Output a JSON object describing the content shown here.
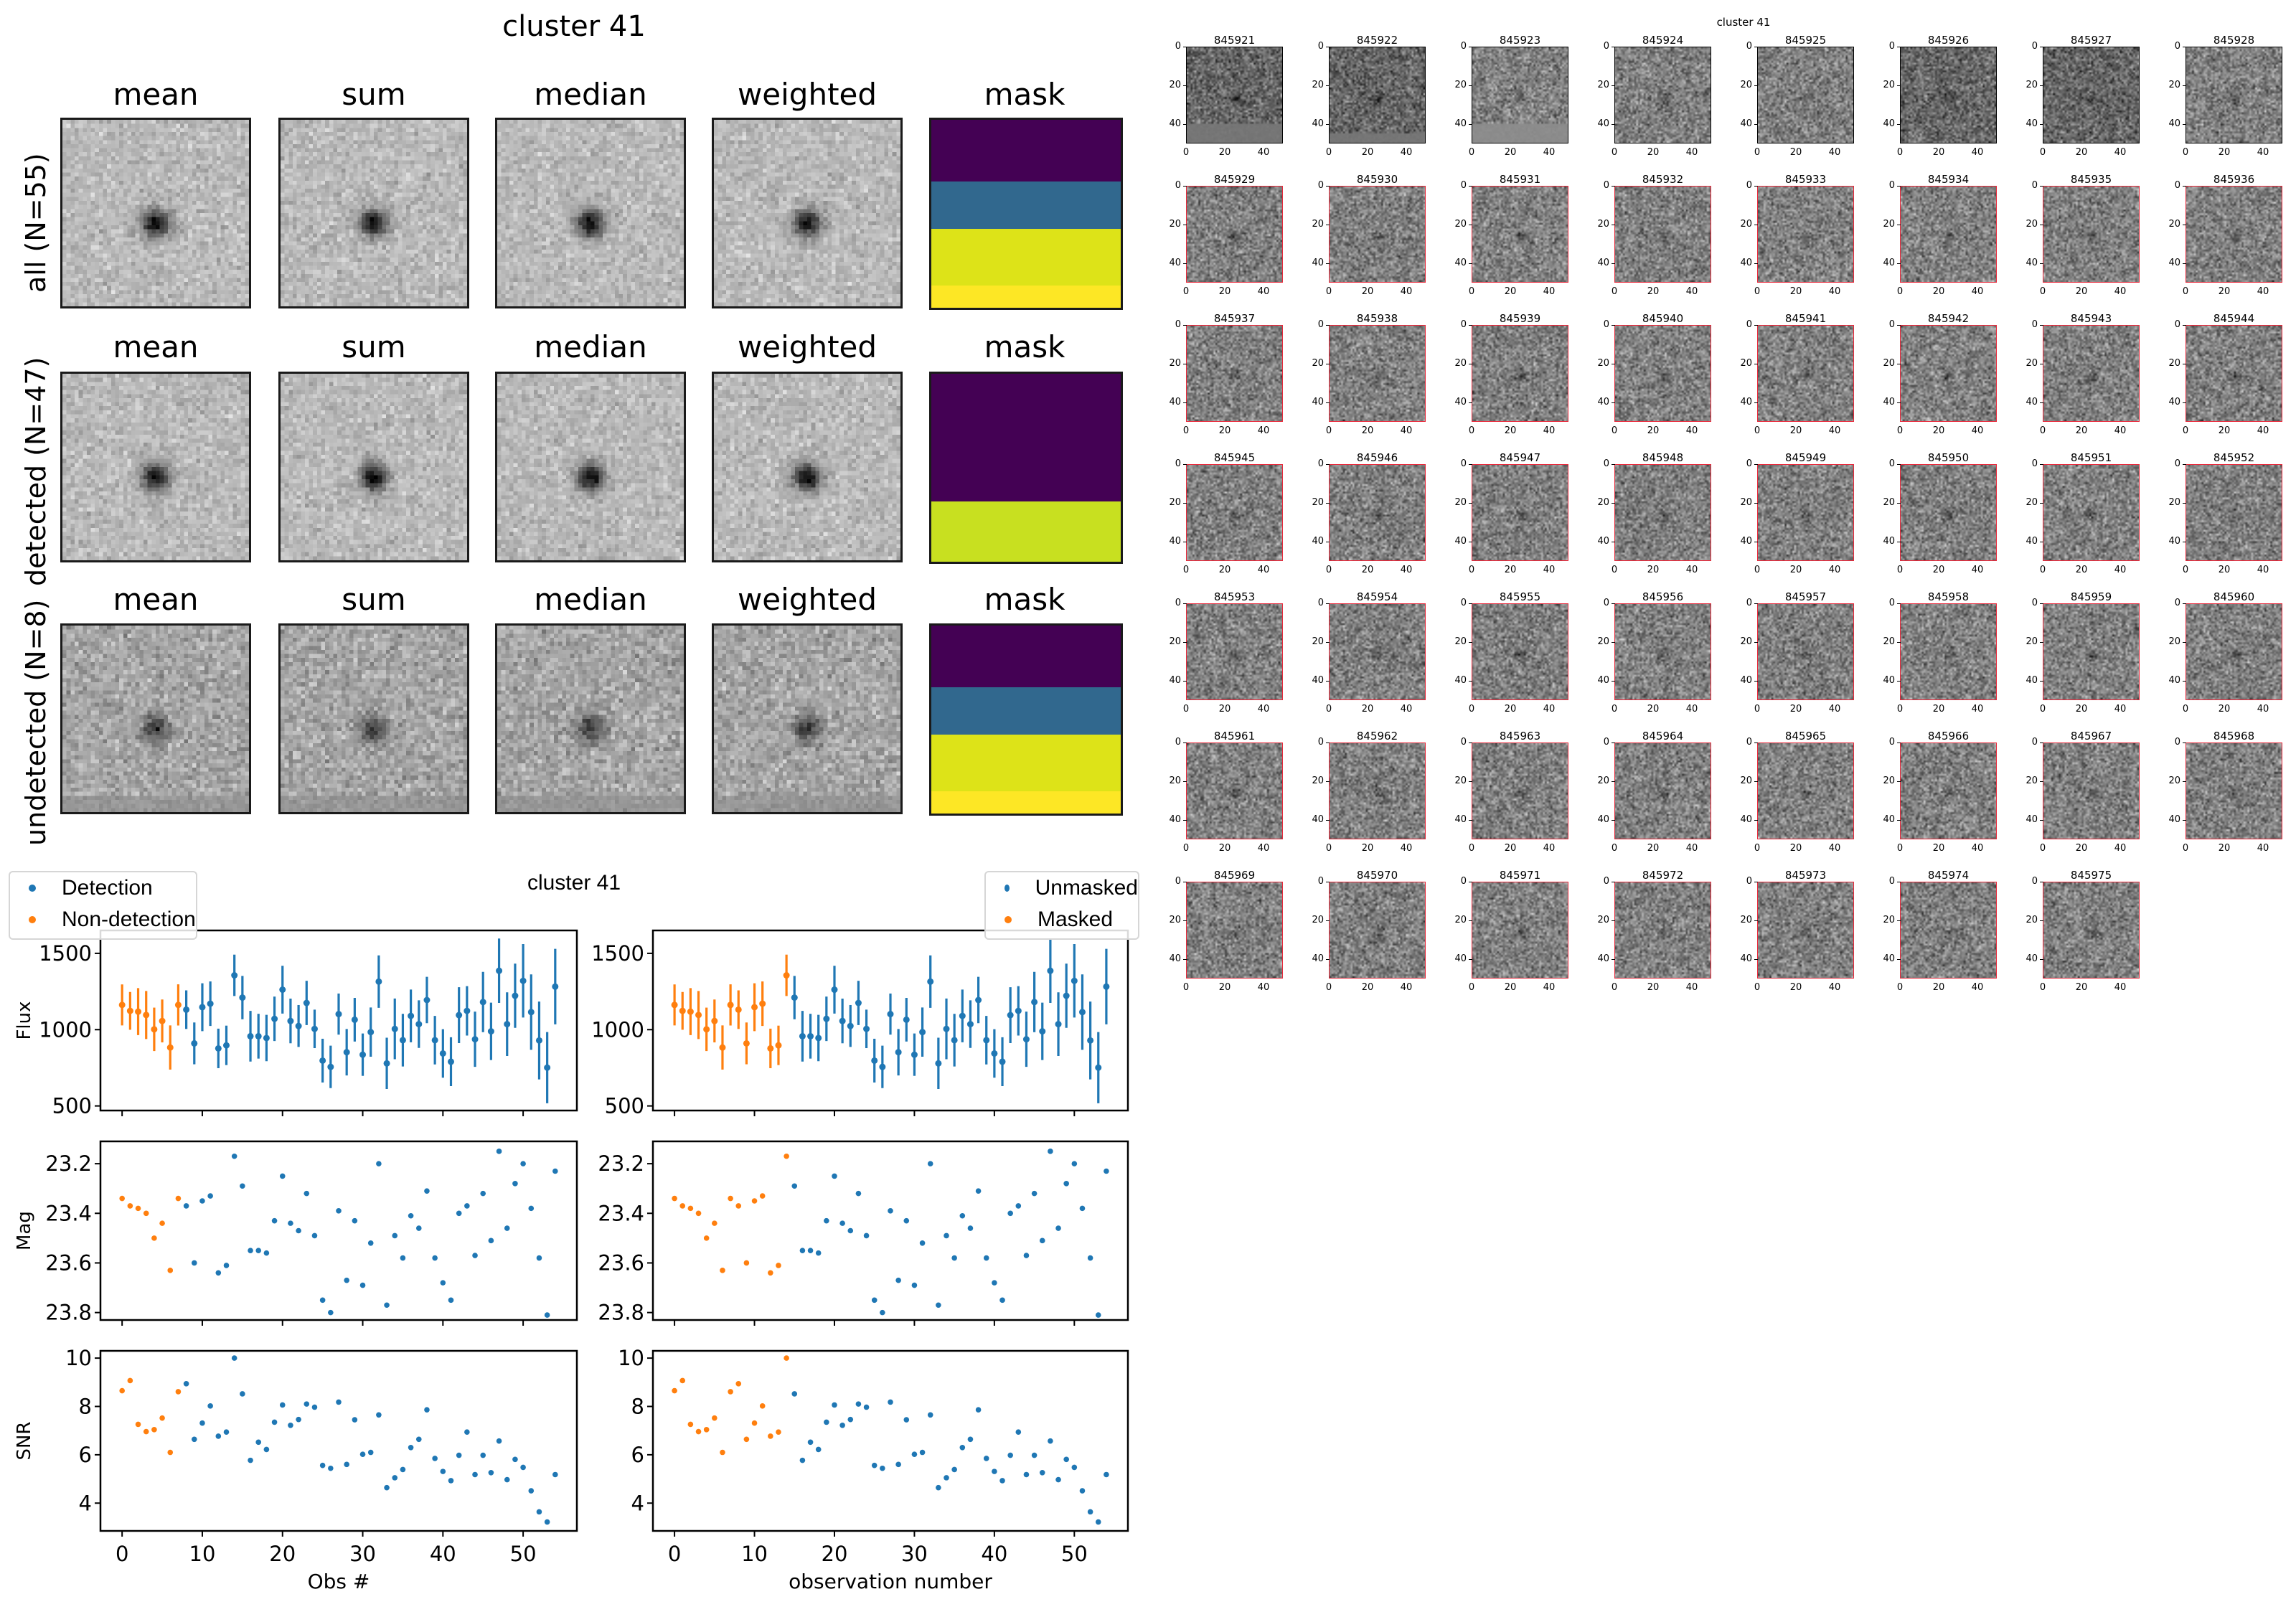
{
  "figure_left": {
    "title": "cluster 41",
    "column_titles": [
      "mean",
      "sum",
      "median",
      "weighted",
      "mask"
    ],
    "rows": [
      {
        "label": "all (N=55)",
        "mask_bands": [
          {
            "fraction": 0.33,
            "color": "#440154"
          },
          {
            "fraction": 0.25,
            "color": "#31688e"
          },
          {
            "fraction": 0.3,
            "color": "#dde318"
          },
          {
            "fraction": 0.12,
            "color": "#fde725"
          }
        ]
      },
      {
        "label": "detected (N=47)",
        "mask_bands": [
          {
            "fraction": 0.68,
            "color": "#440154"
          },
          {
            "fraction": 0.32,
            "color": "#c8e020"
          }
        ]
      },
      {
        "label": "undetected (N=8)",
        "mask_bands": [
          {
            "fraction": 0.33,
            "color": "#440154"
          },
          {
            "fraction": 0.25,
            "color": "#31688e"
          },
          {
            "fraction": 0.3,
            "color": "#dde318"
          },
          {
            "fraction": 0.12,
            "color": "#fde725"
          }
        ]
      }
    ]
  },
  "figure_right": {
    "title": "cluster 41",
    "axis_ticks": [
      "0",
      "20",
      "40"
    ],
    "cutouts": [
      {
        "id": "845921",
        "masked": false
      },
      {
        "id": "845922",
        "masked": false
      },
      {
        "id": "845923",
        "masked": false
      },
      {
        "id": "845924",
        "masked": false
      },
      {
        "id": "845925",
        "masked": false
      },
      {
        "id": "845926",
        "masked": false
      },
      {
        "id": "845927",
        "masked": false
      },
      {
        "id": "845928",
        "masked": false
      },
      {
        "id": "845929",
        "masked": true
      },
      {
        "id": "845930",
        "masked": true
      },
      {
        "id": "845931",
        "masked": true
      },
      {
        "id": "845932",
        "masked": true
      },
      {
        "id": "845933",
        "masked": true
      },
      {
        "id": "845934",
        "masked": true
      },
      {
        "id": "845935",
        "masked": true
      },
      {
        "id": "845936",
        "masked": true
      },
      {
        "id": "845937",
        "masked": true
      },
      {
        "id": "845938",
        "masked": true
      },
      {
        "id": "845939",
        "masked": true
      },
      {
        "id": "845940",
        "masked": true
      },
      {
        "id": "845941",
        "masked": true
      },
      {
        "id": "845942",
        "masked": true
      },
      {
        "id": "845943",
        "masked": true
      },
      {
        "id": "845944",
        "masked": true
      },
      {
        "id": "845945",
        "masked": true
      },
      {
        "id": "845946",
        "masked": true
      },
      {
        "id": "845947",
        "masked": true
      },
      {
        "id": "845948",
        "masked": true
      },
      {
        "id": "845949",
        "masked": true
      },
      {
        "id": "845950",
        "masked": true
      },
      {
        "id": "845951",
        "masked": true
      },
      {
        "id": "845952",
        "masked": true
      },
      {
        "id": "845953",
        "masked": true
      },
      {
        "id": "845954",
        "masked": true
      },
      {
        "id": "845955",
        "masked": true
      },
      {
        "id": "845956",
        "masked": true
      },
      {
        "id": "845957",
        "masked": true
      },
      {
        "id": "845958",
        "masked": true
      },
      {
        "id": "845959",
        "masked": true
      },
      {
        "id": "845960",
        "masked": true
      },
      {
        "id": "845961",
        "masked": true
      },
      {
        "id": "845962",
        "masked": true
      },
      {
        "id": "845963",
        "masked": true
      },
      {
        "id": "845964",
        "masked": true
      },
      {
        "id": "845965",
        "masked": true
      },
      {
        "id": "845966",
        "masked": true
      },
      {
        "id": "845967",
        "masked": true
      },
      {
        "id": "845968",
        "masked": true
      },
      {
        "id": "845969",
        "masked": true
      },
      {
        "id": "845970",
        "masked": true
      },
      {
        "id": "845971",
        "masked": true
      },
      {
        "id": "845972",
        "masked": true
      },
      {
        "id": "845973",
        "masked": true
      },
      {
        "id": "845974",
        "masked": true
      },
      {
        "id": "845975",
        "masked": true
      }
    ]
  },
  "chart_data": [
    {
      "type": "scatter",
      "title": "cluster 41",
      "panels": [
        "Flux",
        "Mag",
        "SNR"
      ],
      "xlabel": "Obs #",
      "legend": {
        "placement": "top-left",
        "entries": [
          {
            "label": "Detection",
            "color": "#1f77b4"
          },
          {
            "label": "Non-detection",
            "color": "#ff7f0e"
          }
        ]
      },
      "x": [
        0,
        1,
        2,
        3,
        4,
        5,
        6,
        7,
        8,
        9,
        10,
        11,
        12,
        13,
        14,
        15,
        16,
        17,
        18,
        19,
        20,
        21,
        22,
        23,
        24,
        25,
        26,
        27,
        28,
        29,
        30,
        31,
        32,
        33,
        34,
        35,
        36,
        37,
        38,
        39,
        40,
        41,
        42,
        43,
        44,
        45,
        46,
        47,
        48,
        49,
        50,
        51,
        52,
        53,
        54
      ],
      "highlight_range": [
        0,
        7
      ],
      "highlight_series": "Non-detection",
      "xticks": [
        0,
        10,
        20,
        30,
        40,
        50
      ],
      "xlim": [
        -2.7,
        56.7
      ],
      "flux": {
        "ylabel": "Flux",
        "yticks": [
          500,
          1000,
          1500
        ],
        "ylim": [
          470,
          1650
        ],
        "values": [
          1162,
          1123,
          1118,
          1096,
          1002,
          1057,
          883,
          1162,
          1131,
          910,
          1147,
          1170,
          877,
          897,
          1356,
          1210,
          957,
          957,
          945,
          1071,
          1262,
          1057,
          1024,
          1175,
          1005,
          797,
          756,
          1102,
          852,
          1065,
          836,
          984,
          1315,
          779,
          1005,
          931,
          1090,
          1036,
          1194,
          931,
          844,
          790,
          1095,
          1123,
          937,
          1181,
          989,
          1386,
          1036,
          1222,
          1320,
          1115,
          929,
          751,
          1282
        ]
      },
      "mag": {
        "ylabel": "Mag",
        "yticks": [
          23.2,
          23.4,
          23.6,
          23.8
        ],
        "ylim": [
          23.83,
          23.11
        ],
        "inverted": true,
        "values": [
          23.34,
          23.37,
          23.38,
          23.4,
          23.5,
          23.44,
          23.63,
          23.34,
          23.37,
          23.6,
          23.35,
          23.33,
          23.64,
          23.61,
          23.17,
          23.29,
          23.55,
          23.55,
          23.56,
          23.43,
          23.25,
          23.44,
          23.47,
          23.32,
          23.49,
          23.75,
          23.8,
          23.39,
          23.67,
          23.43,
          23.69,
          23.52,
          23.2,
          23.77,
          23.49,
          23.58,
          23.41,
          23.46,
          23.31,
          23.58,
          23.68,
          23.75,
          23.4,
          23.37,
          23.57,
          23.32,
          23.51,
          23.15,
          23.46,
          23.28,
          23.2,
          23.38,
          23.58,
          23.81,
          23.23
        ]
      },
      "snr": {
        "ylabel": "SNR",
        "yticks": [
          4,
          6,
          8,
          10
        ],
        "ylim": [
          2.85,
          10.3
        ],
        "values": [
          8.65,
          9.07,
          7.26,
          6.96,
          7.04,
          7.52,
          6.1,
          8.61,
          8.94,
          6.64,
          7.31,
          8.02,
          6.77,
          6.94,
          10.0,
          8.52,
          5.77,
          6.52,
          6.22,
          7.35,
          8.06,
          7.22,
          7.46,
          8.1,
          7.97,
          5.56,
          5.44,
          8.18,
          5.6,
          7.45,
          6.02,
          6.1,
          7.65,
          4.64,
          5.05,
          5.39,
          6.3,
          6.64,
          7.86,
          5.85,
          5.31,
          4.93,
          5.98,
          6.94,
          5.18,
          5.98,
          5.26,
          6.57,
          4.97,
          5.81,
          5.48,
          4.51,
          3.64,
          3.22,
          5.18
        ]
      }
    },
    {
      "type": "scatter",
      "title": "",
      "panels": [
        "Flux",
        "Mag",
        "SNR"
      ],
      "xlabel": "observation number",
      "legend": {
        "placement": "top-right",
        "entries": [
          {
            "label": "Unmasked",
            "color": "#1f77b4"
          },
          {
            "label": "Masked",
            "color": "#ff7f0e"
          }
        ]
      },
      "x": [
        0,
        1,
        2,
        3,
        4,
        5,
        6,
        7,
        8,
        9,
        10,
        11,
        12,
        13,
        14,
        15,
        16,
        17,
        18,
        19,
        20,
        21,
        22,
        23,
        24,
        25,
        26,
        27,
        28,
        29,
        30,
        31,
        32,
        33,
        34,
        35,
        36,
        37,
        38,
        39,
        40,
        41,
        42,
        43,
        44,
        45,
        46,
        47,
        48,
        49,
        50,
        51,
        52,
        53,
        54
      ],
      "highlight_range": [
        0,
        14
      ],
      "highlight_series": "Masked",
      "xticks": [
        0,
        10,
        20,
        30,
        40,
        50
      ],
      "xlim": [
        -2.7,
        56.7
      ],
      "same_values_as": "left panel"
    }
  ]
}
